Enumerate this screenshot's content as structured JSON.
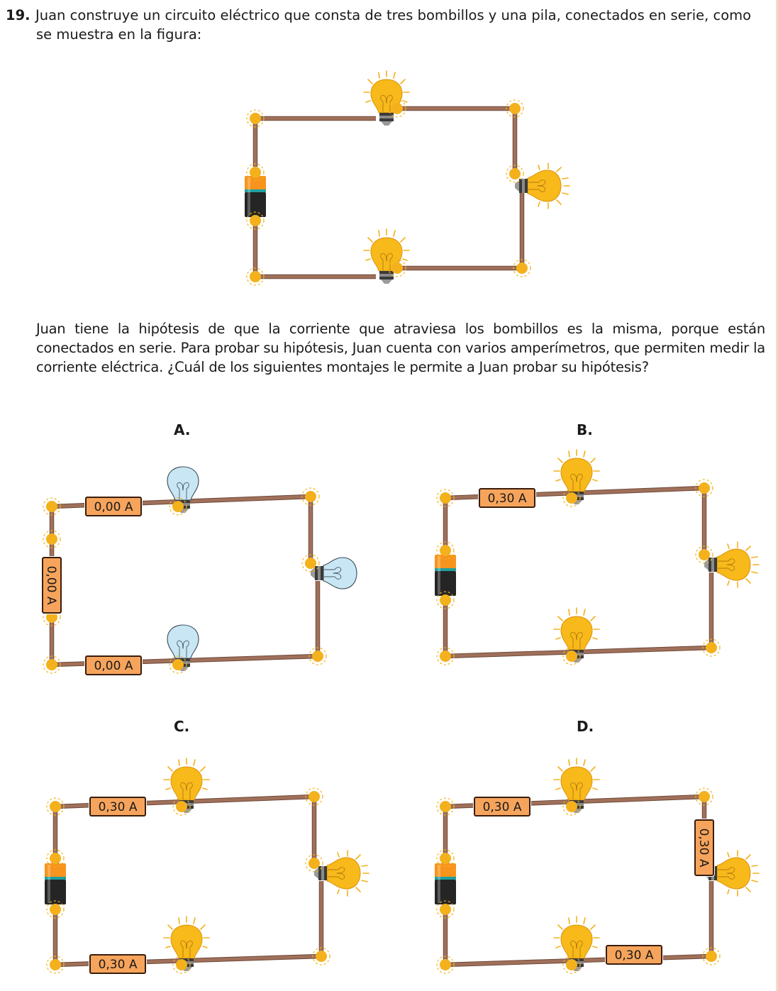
{
  "question": {
    "number": "19.",
    "line1": "Juan construye un circuito eléctrico que consta de tres bombillos y una pila, conectados en serie, como",
    "line2": "se muestra en la figura:"
  },
  "hypothesis": {
    "text": "Juan tiene la hipótesis de que la corriente que atraviesa los bombillos es la misma, porque están conectados en serie. Para probar su hipótesis, Juan cuenta con varios amperímetros, que permiten medir la corriente eléctrica. ¿Cuál de los siguientes montajes le permite a Juan probar su hipótesis?"
  },
  "options": [
    {
      "label": "A.",
      "ammeters": [
        "0,00 A",
        "0,00 A",
        "0,00 A"
      ],
      "bulbs_lit": false
    },
    {
      "label": "B.",
      "ammeters": [
        "0,30 A"
      ],
      "bulbs_lit": true
    },
    {
      "label": "C.",
      "ammeters": [
        "0,30 A",
        "0,30 A"
      ],
      "bulbs_lit": true
    },
    {
      "label": "D.",
      "ammeters": [
        "0,30 A",
        "0,30 A",
        "0,30 A"
      ],
      "bulbs_lit": true
    }
  ],
  "colors": {
    "wire": "#a0705a",
    "node": "#f4b11c",
    "bulb_lit": "#f8b91a",
    "bulb_off": "#c9e6f5",
    "ammeter": "#f6a45c"
  }
}
